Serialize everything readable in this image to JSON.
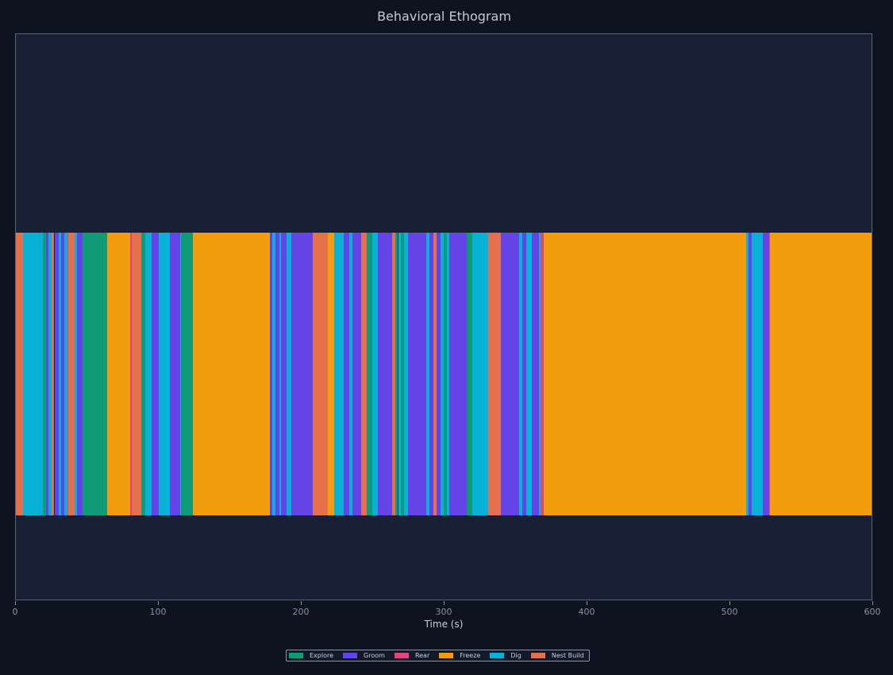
{
  "chart_data": {
    "type": "timeline",
    "title": "Behavioral Ethogram",
    "xlabel": "Time (s)",
    "ylabel": "",
    "xlim": [
      0,
      600
    ],
    "xticks": [
      0,
      100,
      200,
      300,
      400,
      500,
      600
    ],
    "grid": false,
    "legend_position": "bottom-center",
    "categories": [
      {
        "name": "Explore",
        "color": "#0f9a78"
      },
      {
        "name": "Groom",
        "color": "#6444e6"
      },
      {
        "name": "Rear",
        "color": "#e0457b"
      },
      {
        "name": "Freeze",
        "color": "#f39c0e"
      },
      {
        "name": "Dig",
        "color": "#07b2d6"
      },
      {
        "name": "Nest Build",
        "color": "#e4704e"
      }
    ],
    "segments": [
      {
        "start": 0,
        "end": 5,
        "behavior": "Nest Build"
      },
      {
        "start": 5,
        "end": 19,
        "behavior": "Dig"
      },
      {
        "start": 19,
        "end": 21,
        "behavior": "Explore"
      },
      {
        "start": 21,
        "end": 23,
        "behavior": "Groom"
      },
      {
        "start": 23,
        "end": 25,
        "behavior": "Dig"
      },
      {
        "start": 25,
        "end": 27,
        "behavior": "Nest Build"
      },
      {
        "start": 27,
        "end": 30,
        "behavior": "Groom"
      },
      {
        "start": 30,
        "end": 32,
        "behavior": "Dig"
      },
      {
        "start": 32,
        "end": 34,
        "behavior": "Groom"
      },
      {
        "start": 34,
        "end": 36,
        "behavior": "Dig"
      },
      {
        "start": 36,
        "end": 37,
        "behavior": "Rear"
      },
      {
        "start": 37,
        "end": 41,
        "behavior": "Nest Build"
      },
      {
        "start": 41,
        "end": 43,
        "behavior": "Dig"
      },
      {
        "start": 43,
        "end": 47,
        "behavior": "Groom"
      },
      {
        "start": 47,
        "end": 64,
        "behavior": "Explore"
      },
      {
        "start": 64,
        "end": 80,
        "behavior": "Freeze"
      },
      {
        "start": 80,
        "end": 81,
        "behavior": "Rear"
      },
      {
        "start": 81,
        "end": 88,
        "behavior": "Nest Build"
      },
      {
        "start": 88,
        "end": 91,
        "behavior": "Explore"
      },
      {
        "start": 91,
        "end": 95,
        "behavior": "Dig"
      },
      {
        "start": 95,
        "end": 100,
        "behavior": "Groom"
      },
      {
        "start": 100,
        "end": 108,
        "behavior": "Dig"
      },
      {
        "start": 108,
        "end": 115,
        "behavior": "Groom"
      },
      {
        "start": 115,
        "end": 116,
        "behavior": "Dig"
      },
      {
        "start": 116,
        "end": 124,
        "behavior": "Explore"
      },
      {
        "start": 124,
        "end": 178,
        "behavior": "Freeze"
      },
      {
        "start": 178,
        "end": 180,
        "behavior": "Groom"
      },
      {
        "start": 180,
        "end": 182,
        "behavior": "Dig"
      },
      {
        "start": 182,
        "end": 185,
        "behavior": "Groom"
      },
      {
        "start": 185,
        "end": 186,
        "behavior": "Dig"
      },
      {
        "start": 186,
        "end": 190,
        "behavior": "Groom"
      },
      {
        "start": 190,
        "end": 193,
        "behavior": "Dig"
      },
      {
        "start": 193,
        "end": 208,
        "behavior": "Groom"
      },
      {
        "start": 208,
        "end": 219,
        "behavior": "Nest Build"
      },
      {
        "start": 219,
        "end": 223,
        "behavior": "Freeze"
      },
      {
        "start": 223,
        "end": 230,
        "behavior": "Dig"
      },
      {
        "start": 230,
        "end": 234,
        "behavior": "Groom"
      },
      {
        "start": 234,
        "end": 236,
        "behavior": "Dig"
      },
      {
        "start": 236,
        "end": 242,
        "behavior": "Groom"
      },
      {
        "start": 242,
        "end": 246,
        "behavior": "Nest Build"
      },
      {
        "start": 246,
        "end": 250,
        "behavior": "Explore"
      },
      {
        "start": 250,
        "end": 254,
        "behavior": "Dig"
      },
      {
        "start": 254,
        "end": 264,
        "behavior": "Groom"
      },
      {
        "start": 264,
        "end": 266,
        "behavior": "Nest Build"
      },
      {
        "start": 266,
        "end": 268,
        "behavior": "Explore"
      },
      {
        "start": 268,
        "end": 270,
        "behavior": "Dig"
      },
      {
        "start": 270,
        "end": 272,
        "behavior": "Explore"
      },
      {
        "start": 272,
        "end": 275,
        "behavior": "Dig"
      },
      {
        "start": 275,
        "end": 288,
        "behavior": "Groom"
      },
      {
        "start": 288,
        "end": 290,
        "behavior": "Dig"
      },
      {
        "start": 290,
        "end": 293,
        "behavior": "Groom"
      },
      {
        "start": 293,
        "end": 295,
        "behavior": "Nest Build"
      },
      {
        "start": 295,
        "end": 298,
        "behavior": "Groom"
      },
      {
        "start": 298,
        "end": 300,
        "behavior": "Dig"
      },
      {
        "start": 300,
        "end": 302,
        "behavior": "Explore"
      },
      {
        "start": 302,
        "end": 304,
        "behavior": "Dig"
      },
      {
        "start": 304,
        "end": 316,
        "behavior": "Groom"
      },
      {
        "start": 316,
        "end": 320,
        "behavior": "Explore"
      },
      {
        "start": 320,
        "end": 331,
        "behavior": "Dig"
      },
      {
        "start": 331,
        "end": 340,
        "behavior": "Nest Build"
      },
      {
        "start": 340,
        "end": 344,
        "behavior": "Groom"
      },
      {
        "start": 344,
        "end": 353,
        "behavior": "Groom"
      },
      {
        "start": 353,
        "end": 355,
        "behavior": "Dig"
      },
      {
        "start": 355,
        "end": 358,
        "behavior": "Groom"
      },
      {
        "start": 358,
        "end": 362,
        "behavior": "Dig"
      },
      {
        "start": 362,
        "end": 367,
        "behavior": "Groom"
      },
      {
        "start": 367,
        "end": 368,
        "behavior": "Dig"
      },
      {
        "start": 368,
        "end": 370,
        "behavior": "Rear"
      },
      {
        "start": 370,
        "end": 512,
        "behavior": "Freeze"
      },
      {
        "start": 512,
        "end": 514,
        "behavior": "Dig"
      },
      {
        "start": 514,
        "end": 516,
        "behavior": "Groom"
      },
      {
        "start": 516,
        "end": 524,
        "behavior": "Dig"
      },
      {
        "start": 524,
        "end": 528,
        "behavior": "Groom"
      },
      {
        "start": 528,
        "end": 529,
        "behavior": "Rear"
      },
      {
        "start": 529,
        "end": 600,
        "behavior": "Freeze"
      }
    ]
  }
}
